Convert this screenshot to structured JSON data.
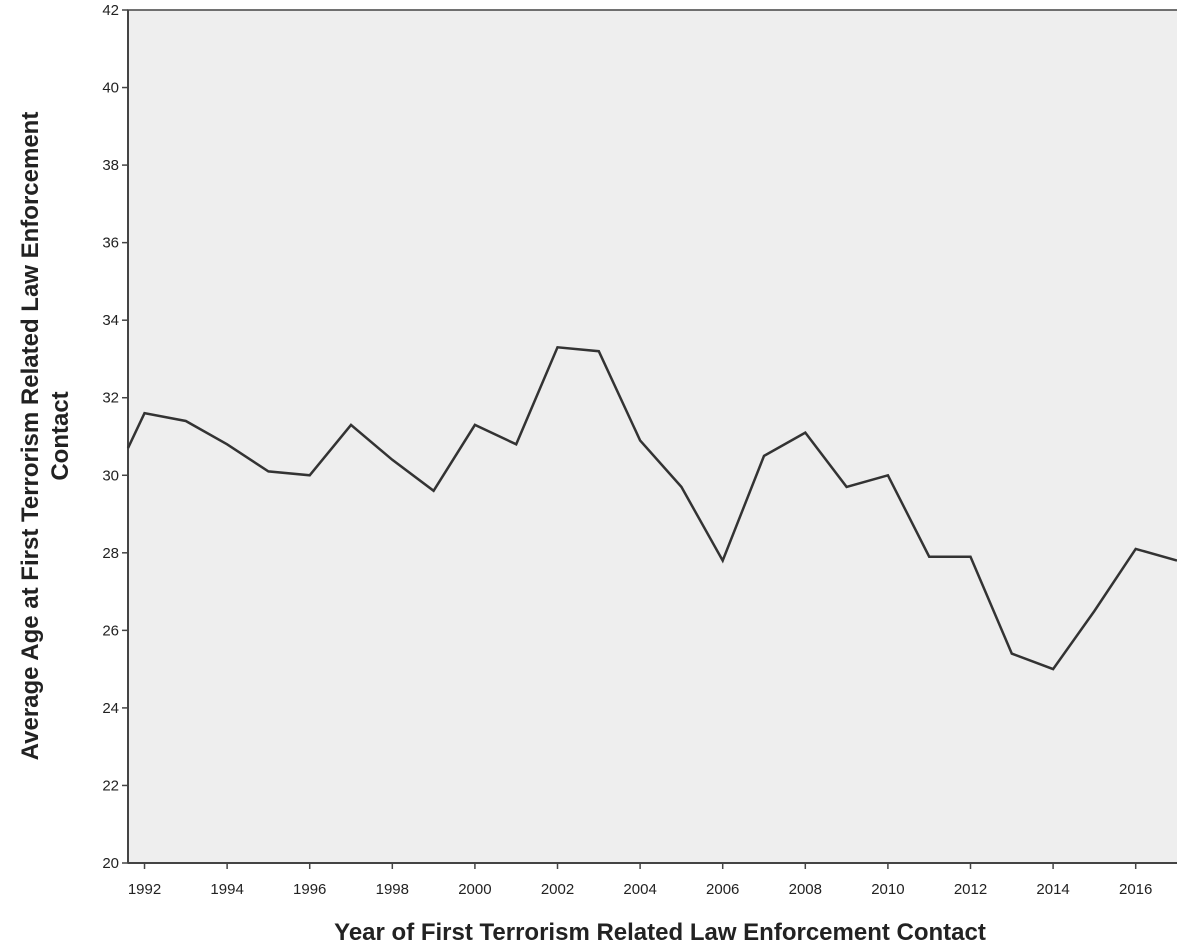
{
  "chart_data": {
    "type": "line",
    "xlabel": "Year of First Terrorism Related Law Enforcement Contact",
    "ylabel_lines": [
      "Average Age at First Terrorism Related Law Enforcement",
      "Contact"
    ],
    "xlim": [
      1991.6,
      2017
    ],
    "ylim": [
      20,
      42
    ],
    "x_ticks": [
      1992,
      1994,
      1996,
      1998,
      2000,
      2002,
      2004,
      2006,
      2008,
      2010,
      2012,
      2014,
      2016
    ],
    "y_ticks": [
      20,
      22,
      24,
      26,
      28,
      30,
      32,
      34,
      36,
      38,
      40,
      42
    ],
    "grid": false,
    "series": [
      {
        "x": [
          1991.6,
          1992,
          1993,
          1994,
          1995,
          1996,
          1997,
          1998,
          1999,
          2000,
          2001,
          2002,
          2003,
          2004,
          2005,
          2006,
          2007,
          2008,
          2009,
          2010,
          2011,
          2012,
          2013,
          2014,
          2015,
          2016,
          2017
        ],
        "values": [
          30.7,
          31.6,
          31.4,
          30.8,
          30.1,
          30.0,
          31.3,
          30.4,
          29.6,
          31.3,
          30.8,
          33.3,
          33.2,
          30.9,
          29.7,
          27.8,
          30.5,
          31.1,
          29.7,
          30.0,
          27.9,
          27.9,
          25.4,
          25.0,
          26.5,
          28.1,
          27.8
        ]
      }
    ],
    "colors": {
      "plot_background": "#eeeeee",
      "line": "#333333",
      "axis": "#444444"
    }
  }
}
